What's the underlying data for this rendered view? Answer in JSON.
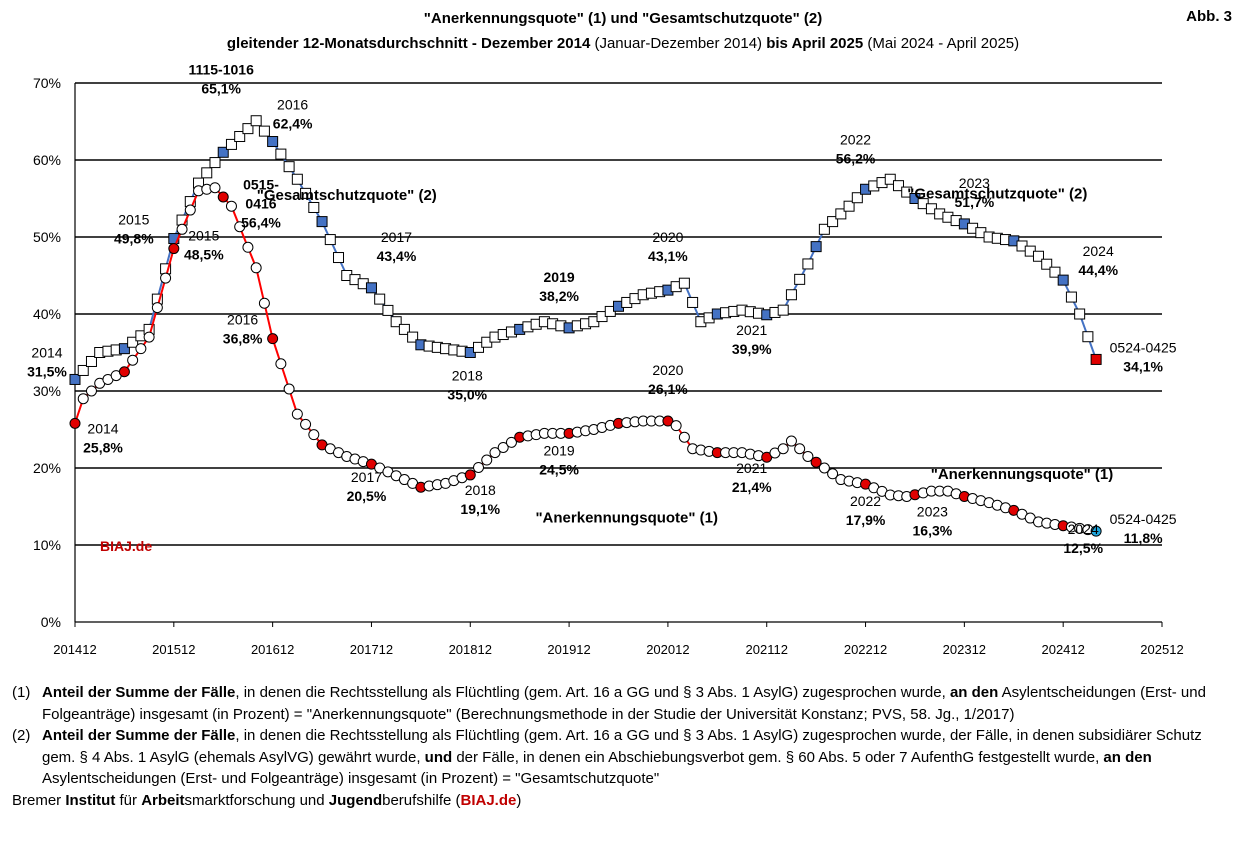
{
  "header": {
    "title_line1": "\"Anerkennungsquote\" (1) und \"Gesamtschutzquote\" (2)",
    "subtitle_a": "gleitender 12-Monatsdurchschnitt - Dezember 2014",
    "subtitle_b": " (Januar-Dezember 2014) ",
    "subtitle_c": "bis April 2025",
    "subtitle_d": " (Mai 2024 - April 2025)",
    "figure_label": "Abb. 3"
  },
  "chart_data": {
    "type": "line",
    "x_start": "201412",
    "x_end": "202504",
    "ylim": [
      0,
      70
    ],
    "grid": true,
    "ytick_labels": [
      "0%",
      "10%",
      "20%",
      "30%",
      "40%",
      "50%",
      "60%",
      "70%"
    ],
    "xtick_labels": [
      "201412",
      "201512",
      "201612",
      "201712",
      "201812",
      "201912",
      "202012",
      "202112",
      "202212",
      "202312",
      "202412",
      "202512"
    ],
    "series": [
      {
        "name": "Gesamtschutzquote (2)",
        "color": "#4472c4",
        "marker": "square",
        "anchors": [
          {
            "month": "201412",
            "value": 31.5
          },
          {
            "month": "201503",
            "value": 35.0
          },
          {
            "month": "201506",
            "value": 35.5
          },
          {
            "month": "201509",
            "value": 38.0
          },
          {
            "month": "201512",
            "value": 49.8
          },
          {
            "month": "201603",
            "value": 57.0
          },
          {
            "month": "201606",
            "value": 61.0
          },
          {
            "month": "201610",
            "value": 65.1
          },
          {
            "month": "201612",
            "value": 62.4
          },
          {
            "month": "201703",
            "value": 57.5
          },
          {
            "month": "201706",
            "value": 52.0
          },
          {
            "month": "201709",
            "value": 45.0
          },
          {
            "month": "201712",
            "value": 43.4
          },
          {
            "month": "201803",
            "value": 39.0
          },
          {
            "month": "201806",
            "value": 36.0
          },
          {
            "month": "201812",
            "value": 35.0
          },
          {
            "month": "201903",
            "value": 37.0
          },
          {
            "month": "201906",
            "value": 38.0
          },
          {
            "month": "201909",
            "value": 39.0
          },
          {
            "month": "201912",
            "value": 38.2
          },
          {
            "month": "202003",
            "value": 39.0
          },
          {
            "month": "202006",
            "value": 41.0
          },
          {
            "month": "202009",
            "value": 42.5
          },
          {
            "month": "202012",
            "value": 43.1
          },
          {
            "month": "202102",
            "value": 44.0
          },
          {
            "month": "202104",
            "value": 39.0
          },
          {
            "month": "202106",
            "value": 40.0
          },
          {
            "month": "202109",
            "value": 40.5
          },
          {
            "month": "202112",
            "value": 39.9
          },
          {
            "month": "202202",
            "value": 40.5
          },
          {
            "month": "202205",
            "value": 46.5
          },
          {
            "month": "202207",
            "value": 51.0
          },
          {
            "month": "202210",
            "value": 54.0
          },
          {
            "month": "202212",
            "value": 56.2
          },
          {
            "month": "202303",
            "value": 57.5
          },
          {
            "month": "202306",
            "value": 55.0
          },
          {
            "month": "202309",
            "value": 53.0
          },
          {
            "month": "202312",
            "value": 51.7
          },
          {
            "month": "202403",
            "value": 50.0
          },
          {
            "month": "202406",
            "value": 49.5
          },
          {
            "month": "202409",
            "value": 47.5
          },
          {
            "month": "202412",
            "value": 44.4
          },
          {
            "month": "202502",
            "value": 40.0
          },
          {
            "month": "202504",
            "value": 34.1
          }
        ]
      },
      {
        "name": "Anerkennungsquote (1)",
        "color": "#ff0000",
        "marker": "circle",
        "anchors": [
          {
            "month": "201412",
            "value": 25.8
          },
          {
            "month": "201501",
            "value": 29.0
          },
          {
            "month": "201503",
            "value": 31.0
          },
          {
            "month": "201506",
            "value": 32.5
          },
          {
            "month": "201509",
            "value": 37.0
          },
          {
            "month": "201512",
            "value": 48.5
          },
          {
            "month": "201603",
            "value": 56.0
          },
          {
            "month": "201605",
            "value": 56.4
          },
          {
            "month": "201607",
            "value": 54.0
          },
          {
            "month": "201610",
            "value": 46.0
          },
          {
            "month": "201612",
            "value": 36.8
          },
          {
            "month": "201703",
            "value": 27.0
          },
          {
            "month": "201706",
            "value": 23.0
          },
          {
            "month": "201709",
            "value": 21.5
          },
          {
            "month": "201712",
            "value": 20.5
          },
          {
            "month": "201803",
            "value": 19.0
          },
          {
            "month": "201806",
            "value": 17.5
          },
          {
            "month": "201809",
            "value": 18.0
          },
          {
            "month": "201812",
            "value": 19.1
          },
          {
            "month": "201903",
            "value": 22.0
          },
          {
            "month": "201906",
            "value": 24.0
          },
          {
            "month": "201909",
            "value": 24.5
          },
          {
            "month": "201912",
            "value": 24.5
          },
          {
            "month": "202003",
            "value": 25.0
          },
          {
            "month": "202006",
            "value": 25.8
          },
          {
            "month": "202009",
            "value": 26.1
          },
          {
            "month": "202012",
            "value": 26.1
          },
          {
            "month": "202101",
            "value": 25.5
          },
          {
            "month": "202103",
            "value": 22.5
          },
          {
            "month": "202106",
            "value": 22.0
          },
          {
            "month": "202109",
            "value": 22.0
          },
          {
            "month": "202112",
            "value": 21.4
          },
          {
            "month": "202202",
            "value": 22.5
          },
          {
            "month": "202203",
            "value": 23.5
          },
          {
            "month": "202205",
            "value": 21.5
          },
          {
            "month": "202209",
            "value": 18.5
          },
          {
            "month": "202212",
            "value": 17.9
          },
          {
            "month": "202303",
            "value": 16.5
          },
          {
            "month": "202305",
            "value": 16.3
          },
          {
            "month": "202308",
            "value": 17.0
          },
          {
            "month": "202310",
            "value": 17.0
          },
          {
            "month": "202312",
            "value": 16.3
          },
          {
            "month": "202403",
            "value": 15.5
          },
          {
            "month": "202406",
            "value": 14.5
          },
          {
            "month": "202409",
            "value": 13.0
          },
          {
            "month": "202412",
            "value": 12.5
          },
          {
            "month": "202503",
            "value": 12.0
          },
          {
            "month": "202504",
            "value": 11.8
          }
        ]
      }
    ],
    "annotations": [
      {
        "month": "201412",
        "dx": -28,
        "dy": -22,
        "lines": [
          "2014",
          "31,5%"
        ],
        "bold": [
          false,
          true
        ]
      },
      {
        "month": "201412",
        "dx": 28,
        "dy": 10,
        "lines": [
          "2014",
          "25,8%"
        ],
        "bold": [
          false,
          true
        ]
      },
      {
        "month": "201512",
        "dx": -40,
        "dy": -14,
        "lines": [
          "2015",
          "49,8%"
        ],
        "bold": [
          false,
          true
        ]
      },
      {
        "month": "201512",
        "dx": 30,
        "dy": -8,
        "lines": [
          "2015",
          "48,5%"
        ],
        "bold": [
          false,
          true
        ]
      },
      {
        "month": "201610",
        "dx": -35,
        "dy": -46,
        "lines": [
          "1115-1016",
          "65,1%"
        ],
        "bold": [
          true,
          true
        ]
      },
      {
        "month": "201612",
        "dx": 20,
        "dy": -32,
        "lines": [
          "2016",
          "62,4%"
        ],
        "bold": [
          false,
          true
        ]
      },
      {
        "month": "201605",
        "dx": 46,
        "dy": 2,
        "lines": [
          "0515-",
          "0416",
          "56,4%"
        ],
        "bold": [
          true,
          true,
          true
        ]
      },
      {
        "month": "201612",
        "dx": -30,
        "dy": -14,
        "lines": [
          "2016",
          "36,8%"
        ],
        "bold": [
          false,
          true
        ]
      },
      {
        "month": "201712",
        "dx": 25,
        "dy": -46,
        "lines": [
          "2017",
          "43,4%"
        ],
        "bold": [
          false,
          true
        ]
      },
      {
        "month": "201712",
        "dx": -5,
        "dy": 18,
        "lines": [
          "2017",
          "20,5%"
        ],
        "bold": [
          false,
          true
        ]
      },
      {
        "month": "201812",
        "dx": -3,
        "dy": 28,
        "lines": [
          "2018",
          "35,0%"
        ],
        "bold": [
          false,
          true
        ]
      },
      {
        "month": "201812",
        "dx": 10,
        "dy": 20,
        "lines": [
          "2018",
          "19,1%"
        ],
        "bold": [
          false,
          true
        ]
      },
      {
        "month": "201912",
        "dx": -10,
        "dy": -46,
        "lines": [
          "2019",
          "38,2%"
        ],
        "bold": [
          true,
          true
        ]
      },
      {
        "month": "201912",
        "dx": -10,
        "dy": 22,
        "lines": [
          "2019",
          "24,5%"
        ],
        "bold": [
          false,
          true
        ]
      },
      {
        "month": "202012",
        "dx": 0,
        "dy": -48,
        "lines": [
          "2020",
          "43,1%"
        ],
        "bold": [
          false,
          true
        ]
      },
      {
        "month": "202012",
        "dx": 0,
        "dy": -46,
        "lines": [
          "2020",
          "26,1%"
        ],
        "bold": [
          false,
          true
        ]
      },
      {
        "month": "202112",
        "dx": -15,
        "dy": 20,
        "lines": [
          "2021",
          "39,9%"
        ],
        "bold": [
          false,
          true
        ]
      },
      {
        "month": "202112",
        "dx": -15,
        "dy": 16,
        "lines": [
          "2021",
          "21,4%"
        ],
        "bold": [
          false,
          true
        ]
      },
      {
        "month": "202212",
        "dx": -10,
        "dy": -45,
        "lines": [
          "2022",
          "56,2%"
        ],
        "bold": [
          false,
          true
        ]
      },
      {
        "month": "202212",
        "dx": 0,
        "dy": 22,
        "lines": [
          "2022",
          "17,9%"
        ],
        "bold": [
          false,
          true
        ]
      },
      {
        "month": "202312",
        "dx": 10,
        "dy": -36,
        "lines": [
          "2023",
          "51,7%"
        ],
        "bold": [
          false,
          true
        ]
      },
      {
        "month": "202312",
        "dx": -32,
        "dy": 20,
        "lines": [
          "2023",
          "16,3%"
        ],
        "bold": [
          false,
          true
        ]
      },
      {
        "month": "202412",
        "dx": 35,
        "dy": -24,
        "lines": [
          "2024",
          "44,4%"
        ],
        "bold": [
          false,
          true
        ]
      },
      {
        "month": "202412",
        "dx": 20,
        "dy": 8,
        "lines": [
          "2024",
          "12,5%"
        ],
        "bold": [
          false,
          true
        ]
      },
      {
        "month": "202504",
        "dx": 47,
        "dy": -7,
        "lines": [
          "0524-0425",
          "34,1%"
        ],
        "bold": [
          false,
          true
        ]
      },
      {
        "month": "202504",
        "dx": 47,
        "dy": -7,
        "lines": [
          "0524-0425",
          "11,8%"
        ],
        "bold": [
          false,
          true
        ]
      }
    ],
    "series_labels": [
      {
        "text": "\"Gesamtschutzquote\" (2)",
        "month": "201709",
        "value": 54.8
      },
      {
        "text": "\"Gesamtschutzquote\" (2)",
        "month": "202404",
        "value": 55.0
      },
      {
        "text": "\"Anerkennungsquote\" (1)",
        "month": "202007",
        "value": 12.9
      },
      {
        "text": "\"Anerkennungsquote\" (1)",
        "month": "202407",
        "value": 18.6
      }
    ]
  },
  "watermark": "BIAJ.de",
  "notes": [
    {
      "num": "(1)",
      "parts": [
        {
          "t": "Anteil der Summe der Fälle",
          "b": true
        },
        {
          "t": ", in denen die Rechtsstellung als Flüchtling (gem. Art. 16 a GG und § 3 Abs. 1 AsylG) zugesprochen wurde, ",
          "b": false
        },
        {
          "t": "an den",
          "b": true
        },
        {
          "t": " Asylentscheidungen (Erst- und Folgeanträge) insgesamt (in Prozent) = \"Anerkennungsquote\" (Berechnungsmethode in der Studie der Universität Konstanz; PVS, 58. Jg., 1/2017)",
          "b": false
        }
      ]
    },
    {
      "num": "(2)",
      "parts": [
        {
          "t": "Anteil der Summe der Fälle",
          "b": true
        },
        {
          "t": ", in denen die Rechtsstellung als Flüchtling (gem. Art. 16 a GG und § 3 Abs. 1 AsylG) zugesprochen wurde, der Fälle, in denen subsidiärer Schutz gem. § 4 Abs. 1 AsylG (ehemals AsylVG) gewährt wurde, ",
          "b": false
        },
        {
          "t": "und",
          "b": true
        },
        {
          "t": " der Fälle, in denen ein Abschiebungsverbot gem. § 60 Abs. 5 oder 7 AufenthG festgestellt wurde, ",
          "b": false
        },
        {
          "t": "an den",
          "b": true
        },
        {
          "t": " Asylentscheidungen (Erst- und Folgeanträge) insgesamt (in Prozent) = \"Gesamtschutzquote\"",
          "b": false
        }
      ]
    }
  ],
  "footer": {
    "parts": [
      {
        "t": "Bremer ",
        "b": false
      },
      {
        "t": "Institut",
        "b": true
      },
      {
        "t": " für ",
        "b": false
      },
      {
        "t": "Arbeit",
        "b": true
      },
      {
        "t": "smarktforschung und ",
        "b": false
      },
      {
        "t": "Jugend",
        "b": true
      },
      {
        "t": "berufshilfe (",
        "b": false
      },
      {
        "t": "BIAJ.de",
        "b": true,
        "red": true
      },
      {
        "t": ")",
        "b": false
      }
    ]
  }
}
